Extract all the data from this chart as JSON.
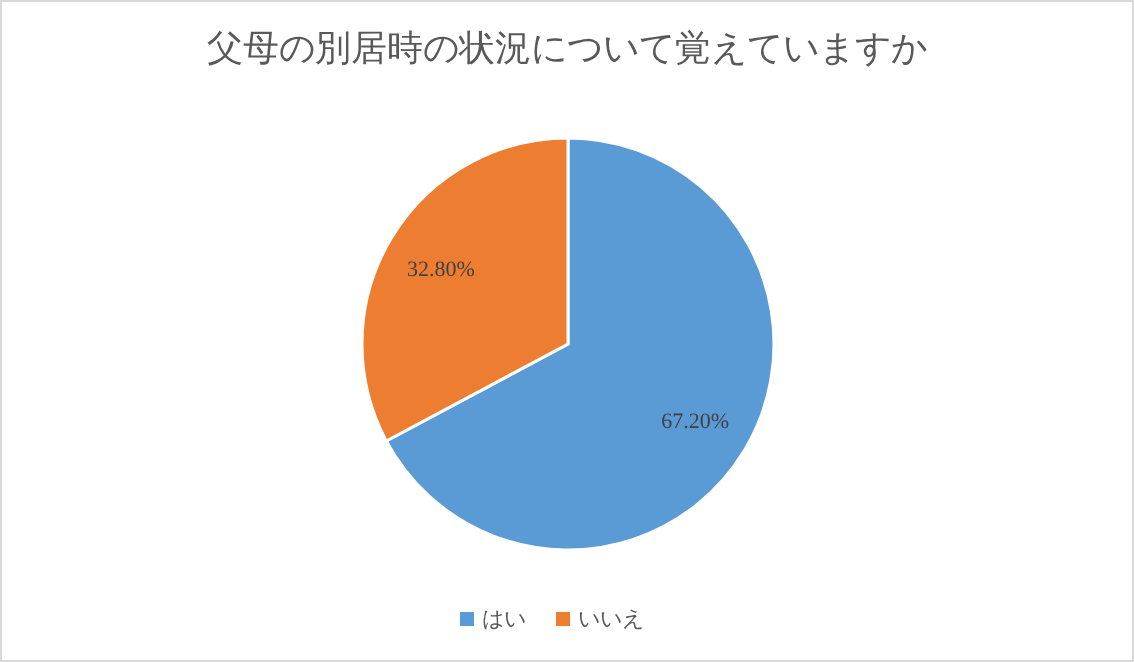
{
  "chart_data": {
    "type": "pie",
    "title": "父母の別居時の状況について覚えていますか",
    "categories": [
      "はい",
      "いいえ"
    ],
    "values": [
      67.2,
      32.8
    ],
    "colors": [
      "#5b9bd5",
      "#ed7d31"
    ],
    "value_labels": [
      "67.20%",
      "32.80%"
    ],
    "legend": "bottom"
  }
}
